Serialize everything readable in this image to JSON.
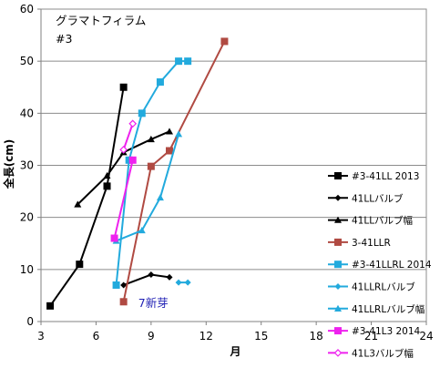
{
  "chart_data": {
    "type": "line",
    "title_lines": [
      "グラマトフィラム",
      "#3"
    ],
    "xlabel": "月",
    "ylabel": "全長(cm)",
    "xlim": [
      3,
      24
    ],
    "ylim": [
      0,
      60
    ],
    "xticks": [
      3,
      6,
      9,
      12,
      15,
      18,
      21,
      24
    ],
    "yticks": [
      0,
      10,
      20,
      30,
      40,
      50,
      60
    ],
    "grid": "horizontal",
    "legend_position": "right",
    "annotation": {
      "text": "7新芽",
      "x": 8.3,
      "y": 3.5
    },
    "series": [
      {
        "name": "#3-41LL 2013",
        "color": "#000000",
        "marker": "square",
        "x": [
          3.5,
          5.1,
          6.6,
          7.5
        ],
        "y": [
          3,
          11,
          26,
          45
        ]
      },
      {
        "name": "41LLバルブ",
        "color": "#000000",
        "marker": "diamond",
        "x": [
          7.5,
          9.0,
          10.0
        ],
        "y": [
          7,
          9,
          8.5
        ]
      },
      {
        "name": "41LLバルブ幅",
        "color": "#000000",
        "marker": "triangle",
        "x": [
          5.0,
          6.6,
          7.5,
          9.0,
          10.0
        ],
        "y": [
          22.5,
          28,
          32.5,
          35,
          36.5
        ]
      },
      {
        "name": "3-41LLR",
        "color": "#b04a42",
        "marker": "square",
        "x": [
          7.5,
          9.0,
          10.0,
          13.0
        ],
        "y": [
          3.8,
          29.8,
          32.8,
          53.8
        ]
      },
      {
        "name": "#3-41LLRL 2014",
        "color": "#22aadd",
        "marker": "square",
        "x": [
          7.1,
          7.8,
          8.5,
          9.5,
          10.5,
          11.0
        ],
        "y": [
          7,
          31,
          40,
          46,
          50,
          50
        ]
      },
      {
        "name": "41LLRLバルブ",
        "color": "#22aadd",
        "marker": "diamond",
        "x": [
          10.5,
          11.0
        ],
        "y": [
          7.5,
          7.5
        ]
      },
      {
        "name": "41LLRLバルブ幅",
        "color": "#22aadd",
        "marker": "triangle",
        "x": [
          7.1,
          8.5,
          9.5,
          10.5
        ],
        "y": [
          15.5,
          17.5,
          23.8,
          36
        ]
      },
      {
        "name": "#3-41L3 2014",
        "color": "#ee22ee",
        "marker": "square",
        "x": [
          7.0,
          8.0
        ],
        "y": [
          16,
          31
        ]
      },
      {
        "name": "41L3バルブ幅",
        "color": "#ee22ee",
        "marker": "diamond-open",
        "x": [
          7.5,
          8.0
        ],
        "y": [
          33,
          38
        ]
      }
    ]
  }
}
